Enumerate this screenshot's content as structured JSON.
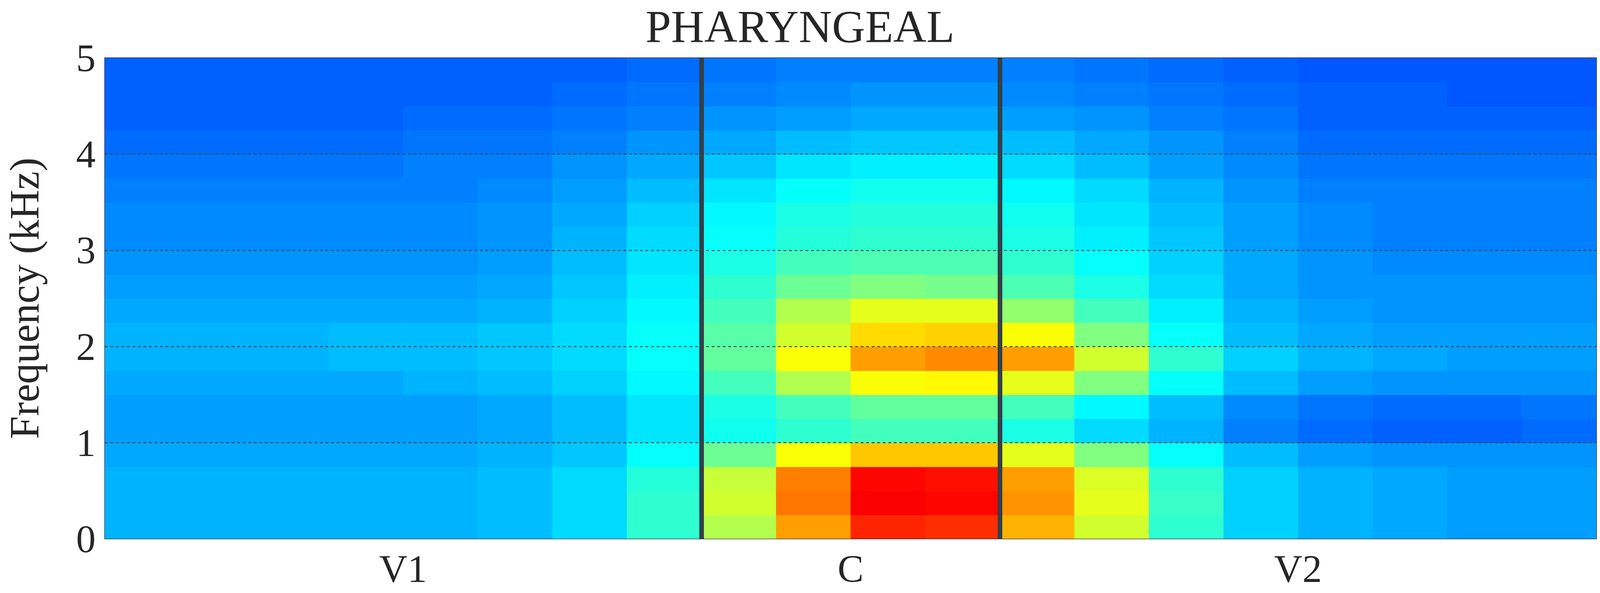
{
  "chart_data": {
    "type": "heatmap",
    "title": "PHARYNGEAL",
    "y_label": "Frequency (kHz)",
    "xlim": [
      0,
      1
    ],
    "xticks": [
      {
        "value": 0.2,
        "label": "V1"
      },
      {
        "value": 0.5,
        "label": "C"
      },
      {
        "value": 0.8,
        "label": "V2"
      }
    ],
    "ylim": [
      0,
      5
    ],
    "yticks": [
      0,
      1,
      2,
      3,
      4,
      5
    ],
    "grid": true,
    "boundaries": [
      0.4,
      0.6
    ],
    "color_range": [
      0,
      1
    ],
    "x": [
      0.025,
      0.075,
      0.125,
      0.175,
      0.225,
      0.275,
      0.325,
      0.375,
      0.425,
      0.475,
      0.525,
      0.575,
      0.625,
      0.675,
      0.725,
      0.775,
      0.825,
      0.875,
      0.925,
      0.975
    ],
    "y": [
      0.125,
      0.375,
      0.625,
      0.875,
      1.125,
      1.375,
      1.625,
      1.875,
      2.125,
      2.375,
      2.625,
      2.875,
      3.125,
      3.375,
      3.625,
      3.875,
      4.125,
      4.375,
      4.625,
      4.875
    ],
    "cells": [
      [
        0.3,
        0.3,
        0.3,
        0.3,
        0.3,
        0.31,
        0.34,
        0.42,
        0.55,
        0.72,
        0.84,
        0.83,
        0.7,
        0.58,
        0.42,
        0.33,
        0.3,
        0.29,
        0.28,
        0.28
      ],
      [
        0.3,
        0.3,
        0.3,
        0.3,
        0.3,
        0.31,
        0.34,
        0.42,
        0.58,
        0.76,
        0.88,
        0.87,
        0.73,
        0.6,
        0.43,
        0.33,
        0.3,
        0.29,
        0.28,
        0.28
      ],
      [
        0.3,
        0.3,
        0.3,
        0.3,
        0.3,
        0.31,
        0.34,
        0.41,
        0.57,
        0.75,
        0.87,
        0.86,
        0.72,
        0.59,
        0.42,
        0.33,
        0.3,
        0.29,
        0.28,
        0.28
      ],
      [
        0.29,
        0.29,
        0.29,
        0.29,
        0.29,
        0.3,
        0.32,
        0.38,
        0.48,
        0.62,
        0.68,
        0.68,
        0.6,
        0.5,
        0.38,
        0.31,
        0.28,
        0.27,
        0.27,
        0.27
      ],
      [
        0.28,
        0.28,
        0.28,
        0.28,
        0.28,
        0.29,
        0.31,
        0.35,
        0.39,
        0.42,
        0.44,
        0.44,
        0.4,
        0.34,
        0.3,
        0.25,
        0.23,
        0.22,
        0.22,
        0.23
      ],
      [
        0.28,
        0.28,
        0.28,
        0.28,
        0.28,
        0.29,
        0.31,
        0.35,
        0.4,
        0.44,
        0.47,
        0.47,
        0.44,
        0.37,
        0.31,
        0.26,
        0.24,
        0.23,
        0.23,
        0.24
      ],
      [
        0.29,
        0.29,
        0.29,
        0.29,
        0.3,
        0.31,
        0.33,
        0.37,
        0.44,
        0.55,
        0.62,
        0.63,
        0.6,
        0.5,
        0.38,
        0.31,
        0.28,
        0.27,
        0.27,
        0.27
      ],
      [
        0.3,
        0.3,
        0.3,
        0.31,
        0.31,
        0.32,
        0.34,
        0.38,
        0.47,
        0.62,
        0.72,
        0.74,
        0.72,
        0.58,
        0.42,
        0.33,
        0.3,
        0.29,
        0.28,
        0.28
      ],
      [
        0.3,
        0.3,
        0.3,
        0.31,
        0.31,
        0.32,
        0.34,
        0.38,
        0.46,
        0.58,
        0.66,
        0.67,
        0.62,
        0.5,
        0.38,
        0.31,
        0.29,
        0.28,
        0.28,
        0.28
      ],
      [
        0.29,
        0.29,
        0.29,
        0.29,
        0.29,
        0.3,
        0.33,
        0.37,
        0.44,
        0.55,
        0.6,
        0.6,
        0.52,
        0.44,
        0.36,
        0.3,
        0.28,
        0.27,
        0.27,
        0.27
      ],
      [
        0.28,
        0.28,
        0.28,
        0.28,
        0.28,
        0.29,
        0.32,
        0.36,
        0.42,
        0.48,
        0.5,
        0.49,
        0.45,
        0.4,
        0.34,
        0.29,
        0.27,
        0.27,
        0.27,
        0.27
      ],
      [
        0.27,
        0.27,
        0.27,
        0.27,
        0.27,
        0.28,
        0.31,
        0.35,
        0.4,
        0.44,
        0.45,
        0.45,
        0.42,
        0.38,
        0.33,
        0.29,
        0.27,
        0.26,
        0.26,
        0.26
      ],
      [
        0.26,
        0.26,
        0.26,
        0.26,
        0.26,
        0.27,
        0.3,
        0.34,
        0.38,
        0.41,
        0.42,
        0.42,
        0.4,
        0.36,
        0.32,
        0.28,
        0.26,
        0.25,
        0.25,
        0.25
      ],
      [
        0.26,
        0.26,
        0.26,
        0.26,
        0.26,
        0.27,
        0.29,
        0.33,
        0.37,
        0.4,
        0.41,
        0.41,
        0.39,
        0.35,
        0.31,
        0.28,
        0.26,
        0.25,
        0.25,
        0.25
      ],
      [
        0.25,
        0.25,
        0.25,
        0.25,
        0.25,
        0.26,
        0.28,
        0.31,
        0.35,
        0.38,
        0.39,
        0.39,
        0.37,
        0.34,
        0.3,
        0.27,
        0.25,
        0.25,
        0.25,
        0.25
      ],
      [
        0.24,
        0.24,
        0.24,
        0.24,
        0.25,
        0.25,
        0.27,
        0.29,
        0.32,
        0.35,
        0.36,
        0.36,
        0.34,
        0.31,
        0.28,
        0.26,
        0.24,
        0.24,
        0.24,
        0.24
      ],
      [
        0.23,
        0.23,
        0.23,
        0.23,
        0.24,
        0.24,
        0.25,
        0.27,
        0.29,
        0.31,
        0.32,
        0.32,
        0.31,
        0.29,
        0.27,
        0.25,
        0.23,
        0.23,
        0.23,
        0.23
      ],
      [
        0.22,
        0.22,
        0.22,
        0.22,
        0.23,
        0.23,
        0.24,
        0.25,
        0.27,
        0.28,
        0.29,
        0.29,
        0.28,
        0.27,
        0.25,
        0.24,
        0.22,
        0.22,
        0.22,
        0.22
      ],
      [
        0.22,
        0.22,
        0.22,
        0.22,
        0.22,
        0.22,
        0.23,
        0.24,
        0.25,
        0.26,
        0.27,
        0.27,
        0.26,
        0.25,
        0.24,
        0.23,
        0.22,
        0.22,
        0.21,
        0.21
      ],
      [
        0.22,
        0.22,
        0.22,
        0.22,
        0.22,
        0.22,
        0.22,
        0.23,
        0.24,
        0.25,
        0.25,
        0.25,
        0.25,
        0.24,
        0.23,
        0.22,
        0.21,
        0.21,
        0.21,
        0.21
      ]
    ]
  }
}
